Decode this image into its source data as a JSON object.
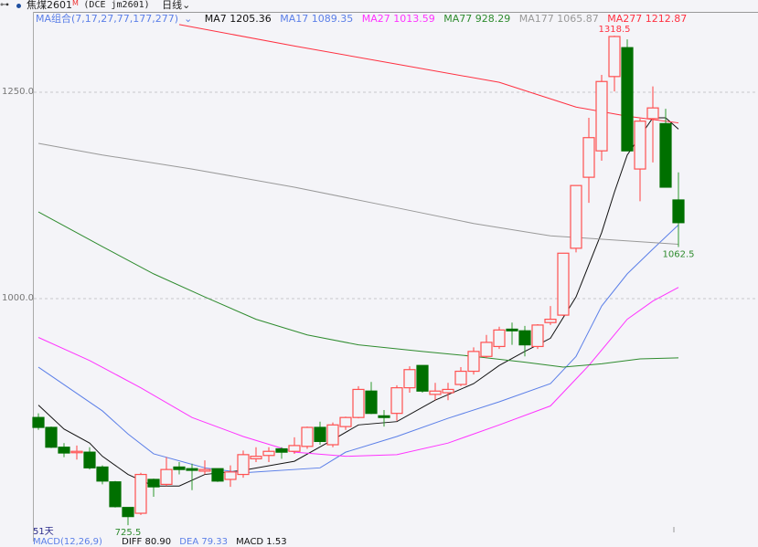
{
  "header": {
    "link_icon": "link-icon",
    "status_dot_color": "#1f4fa0",
    "symbol_name": "焦煤2601",
    "symbol_badge": "M",
    "symbol_code": "(DCE jm2601)",
    "period": "日线"
  },
  "legend": {
    "ma_group": "MA组合(7,17,27,77,177,277)",
    "items": [
      {
        "label": "MA7 1205.36",
        "color": "#111111"
      },
      {
        "label": "MA17 1089.35",
        "color": "#5b7fe8"
      },
      {
        "label": "MA27 1013.59",
        "color": "#ff33ff"
      },
      {
        "label": "MA77 928.29",
        "color": "#2e8b2e"
      },
      {
        "label": "MA177 1065.87",
        "color": "#999999"
      },
      {
        "label": "MA277 1212.87",
        "color": "#ff3040"
      }
    ]
  },
  "footer": {
    "days": "51天",
    "macd_title": "MACD(12,26,9)",
    "diff": "DIFF 80.90",
    "dea": "DEA 79.33",
    "macd": "MACD 1.53"
  },
  "chart_data": {
    "type": "candlestick",
    "ylim": [
      700,
      1350
    ],
    "yticks": [
      {
        "value": 1000,
        "label": "1000.0"
      },
      {
        "value": 1250,
        "label": "1250.0"
      }
    ],
    "grid": "horizontal-dashed",
    "up_color": "#ff3030",
    "down_color": "#007000",
    "annotations": [
      {
        "index": 46,
        "value": 1318.5,
        "label": "1318.5",
        "position": "above",
        "color": "#ff3040"
      },
      {
        "index": 51,
        "value": 1062.5,
        "label": "1062.5",
        "position": "below",
        "color": "#2e8b2e"
      },
      {
        "index": 8,
        "value": 725.5,
        "label": "725.5",
        "position": "below",
        "color": "#2e8b2e"
      }
    ],
    "candles": [
      [
        856,
        861,
        841,
        844
      ],
      [
        844,
        845,
        819,
        820
      ],
      [
        820,
        825,
        808,
        813
      ],
      [
        814,
        822,
        805,
        815
      ],
      [
        814,
        820,
        793,
        795
      ],
      [
        796,
        798,
        775,
        779
      ],
      [
        778,
        779,
        747,
        748
      ],
      [
        747,
        747,
        725.5,
        736
      ],
      [
        740,
        789,
        738,
        787
      ],
      [
        781,
        782,
        760,
        772
      ],
      [
        775,
        808,
        773,
        793
      ],
      [
        796,
        802,
        787,
        793
      ],
      [
        794,
        800,
        768,
        792
      ],
      [
        791,
        804,
        787,
        793
      ],
      [
        794,
        794,
        778,
        779
      ],
      [
        781,
        798,
        772,
        790
      ],
      [
        787,
        816,
        783,
        811
      ],
      [
        806,
        820,
        802,
        809
      ],
      [
        810,
        820,
        802,
        815
      ],
      [
        818,
        820,
        806,
        814
      ],
      [
        815,
        832,
        812,
        822
      ],
      [
        821,
        845,
        818,
        844
      ],
      [
        844,
        851,
        823,
        827
      ],
      [
        823,
        850,
        820,
        847
      ],
      [
        845,
        857,
        841,
        856
      ],
      [
        856,
        894,
        855,
        890
      ],
      [
        888,
        899,
        860,
        861
      ],
      [
        858,
        865,
        845,
        856
      ],
      [
        861,
        895,
        852,
        892
      ],
      [
        892,
        918,
        886,
        914
      ],
      [
        919,
        919,
        886,
        888
      ],
      [
        884,
        898,
        877,
        888
      ],
      [
        886,
        898,
        877,
        890
      ],
      [
        896,
        917,
        894,
        912
      ],
      [
        912,
        941,
        908,
        936
      ],
      [
        930,
        956,
        928,
        947
      ],
      [
        942,
        966,
        939,
        962
      ],
      [
        963,
        971,
        944,
        961
      ],
      [
        961,
        967,
        930,
        944
      ],
      [
        942,
        969,
        939,
        968
      ],
      [
        971,
        991,
        968,
        975
      ],
      [
        980,
        1055,
        979,
        1055
      ],
      [
        1061,
        1137,
        1056,
        1137
      ],
      [
        1147,
        1219,
        1116,
        1195
      ],
      [
        1179,
        1271,
        1167,
        1263
      ],
      [
        1269,
        1318.5,
        1251,
        1317.5
      ],
      [
        1304,
        1314,
        1179,
        1179
      ],
      [
        1157,
        1218,
        1118,
        1215
      ],
      [
        1218,
        1257,
        1165,
        1231
      ],
      [
        1212,
        1230,
        1135,
        1135
      ],
      [
        1119.5,
        1153,
        1062.5,
        1092
      ]
    ],
    "candle_fields": [
      "open",
      "high",
      "low",
      "close"
    ],
    "series": [
      {
        "name": "MA7",
        "color": "#111111",
        "points": [
          [
            1,
            871
          ],
          [
            3,
            842
          ],
          [
            5,
            825
          ],
          [
            6,
            809
          ],
          [
            8,
            787
          ],
          [
            10,
            773
          ],
          [
            12,
            773
          ],
          [
            14,
            787
          ],
          [
            17,
            792
          ],
          [
            21,
            803
          ],
          [
            24,
            829
          ],
          [
            26,
            847
          ],
          [
            29,
            851
          ],
          [
            32,
            877
          ],
          [
            35,
            897
          ],
          [
            37,
            919
          ],
          [
            39,
            936
          ],
          [
            41,
            952
          ],
          [
            43,
            1002
          ],
          [
            45,
            1080
          ],
          [
            46,
            1129
          ],
          [
            47,
            1174
          ],
          [
            49,
            1219
          ],
          [
            50,
            1219
          ],
          [
            51,
            1205.36
          ]
        ]
      },
      {
        "name": "MA17",
        "color": "#5b7fe8",
        "points": [
          [
            1,
            917
          ],
          [
            6,
            864
          ],
          [
            8,
            836
          ],
          [
            10,
            812
          ],
          [
            14,
            795
          ],
          [
            17,
            789
          ],
          [
            23,
            795
          ],
          [
            25,
            814
          ],
          [
            29,
            833
          ],
          [
            33,
            855
          ],
          [
            37,
            875
          ],
          [
            41,
            897
          ],
          [
            43,
            930
          ],
          [
            45,
            991
          ],
          [
            47,
            1030
          ],
          [
            49,
            1060
          ],
          [
            51,
            1089.35
          ]
        ]
      },
      {
        "name": "MA27",
        "color": "#ff33ff",
        "points": [
          [
            1,
            953
          ],
          [
            5,
            925
          ],
          [
            9,
            892
          ],
          [
            13,
            856
          ],
          [
            17,
            833
          ],
          [
            21,
            814
          ],
          [
            25,
            809
          ],
          [
            29,
            811
          ],
          [
            33,
            825
          ],
          [
            37,
            847
          ],
          [
            41,
            870
          ],
          [
            44,
            919
          ],
          [
            47,
            975
          ],
          [
            49,
            997
          ],
          [
            51,
            1013.59
          ]
        ]
      },
      {
        "name": "MA77",
        "color": "#2e8b2e",
        "points": [
          [
            1,
            1105
          ],
          [
            6,
            1063
          ],
          [
            10,
            1030
          ],
          [
            14,
            1002
          ],
          [
            18,
            975
          ],
          [
            22,
            956
          ],
          [
            26,
            944
          ],
          [
            31,
            936
          ],
          [
            35,
            930
          ],
          [
            39,
            923
          ],
          [
            42,
            917
          ],
          [
            45,
            921
          ],
          [
            48,
            927
          ],
          [
            51,
            928.29
          ]
        ]
      },
      {
        "name": "MA177",
        "color": "#999999",
        "points": [
          [
            1,
            1188
          ],
          [
            6,
            1174
          ],
          [
            13,
            1157
          ],
          [
            21,
            1135
          ],
          [
            29,
            1110
          ],
          [
            35,
            1091
          ],
          [
            41,
            1076
          ],
          [
            46,
            1071
          ],
          [
            51,
            1065.87
          ]
        ]
      },
      {
        "name": "MA277",
        "color": "#ff3040",
        "points": [
          [
            12,
            1332
          ],
          [
            21,
            1306
          ],
          [
            29,
            1284
          ],
          [
            37,
            1262
          ],
          [
            43,
            1232
          ],
          [
            47,
            1221
          ],
          [
            51,
            1212.87
          ]
        ]
      }
    ]
  }
}
